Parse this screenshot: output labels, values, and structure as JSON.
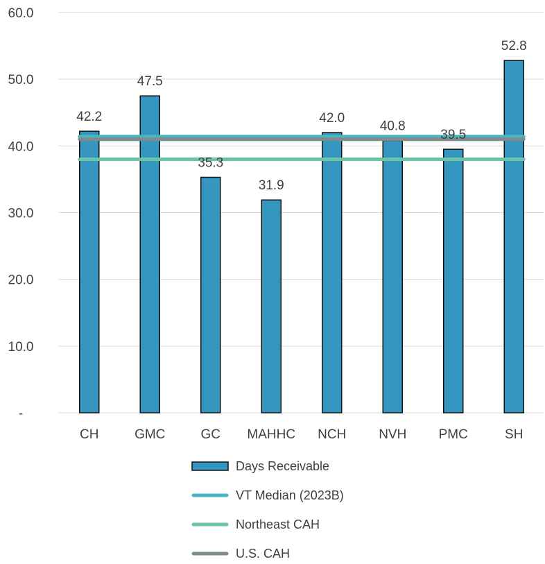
{
  "chart_data": {
    "type": "bar",
    "categories": [
      "CH",
      "GMC",
      "GC",
      "MAHHC",
      "NCH",
      "NVH",
      "PMC",
      "SH"
    ],
    "series": [
      {
        "name": "Days Receivable",
        "type": "bar",
        "color": "#3596BF",
        "values": [
          42.2,
          47.5,
          35.3,
          31.9,
          42.0,
          40.8,
          39.5,
          52.8
        ],
        "labels": [
          "42.2",
          "47.5",
          "35.3",
          "31.9",
          "42.0",
          "40.8",
          "39.5",
          "52.8"
        ]
      },
      {
        "name": "VT Median (2023B)",
        "type": "hline",
        "color": "#4BB5C1",
        "value": 41.4
      },
      {
        "name": "Northeast CAH",
        "type": "hline",
        "color": "#6CC3A8",
        "value": 38.0
      },
      {
        "name": "U.S. CAH",
        "type": "hline",
        "color": "#7F8C8D",
        "value": 41.0
      }
    ],
    "ylim": [
      0,
      60
    ],
    "yticks": [
      0,
      10,
      20,
      30,
      40,
      50,
      60
    ],
    "ytick_labels": [
      "-",
      "10.0",
      "20.0",
      "30.0",
      "40.0",
      "50.0",
      "60.0"
    ],
    "grid": true,
    "legend_position": "bottom"
  }
}
